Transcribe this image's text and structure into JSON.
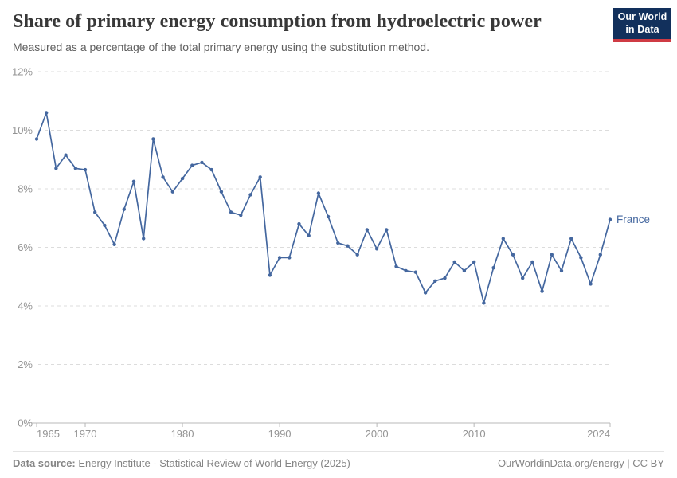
{
  "header": {
    "title": "Share of primary energy consumption from hydroelectric power",
    "subtitle": "Measured as a percentage of the total primary energy using the substitution method.",
    "logo": {
      "line1": "Our World",
      "line2": "in Data",
      "bg_color": "#12305c",
      "accent_color": "#cf3b44"
    }
  },
  "chart_data": {
    "type": "line",
    "title": "Share of primary energy consumption from hydroelectric power",
    "xlabel": "",
    "ylabel": "",
    "ylim": [
      0,
      12
    ],
    "grid": "horizontal dashed",
    "legend": "end-of-line label",
    "yticks": [
      0,
      2,
      4,
      6,
      8,
      10,
      12
    ],
    "ytick_labels": [
      "0%",
      "2%",
      "4%",
      "6%",
      "8%",
      "10%",
      "12%"
    ],
    "xticks": [
      1965,
      1970,
      1980,
      1990,
      2000,
      2010,
      2024
    ],
    "x": [
      1965,
      1966,
      1967,
      1968,
      1969,
      1970,
      1971,
      1972,
      1973,
      1974,
      1975,
      1976,
      1977,
      1978,
      1979,
      1980,
      1981,
      1982,
      1983,
      1984,
      1985,
      1986,
      1987,
      1988,
      1989,
      1990,
      1991,
      1992,
      1993,
      1994,
      1995,
      1996,
      1997,
      1998,
      1999,
      2000,
      2001,
      2002,
      2003,
      2004,
      2005,
      2006,
      2007,
      2008,
      2009,
      2010,
      2011,
      2012,
      2013,
      2014,
      2015,
      2016,
      2017,
      2018,
      2019,
      2020,
      2021,
      2022,
      2023,
      2024
    ],
    "series": [
      {
        "name": "France",
        "color": "#44679f",
        "values": [
          9.7,
          10.6,
          8.7,
          9.15,
          8.7,
          8.65,
          7.2,
          6.75,
          6.1,
          7.3,
          8.25,
          6.3,
          9.7,
          8.4,
          7.9,
          8.35,
          8.8,
          8.9,
          8.65,
          7.9,
          7.2,
          7.1,
          7.8,
          8.4,
          5.05,
          5.65,
          5.65,
          6.8,
          6.4,
          7.85,
          7.05,
          6.15,
          6.05,
          5.75,
          6.6,
          5.95,
          6.6,
          5.35,
          5.2,
          5.15,
          4.45,
          4.85,
          4.95,
          5.5,
          5.2,
          5.5,
          4.1,
          5.3,
          6.3,
          5.75,
          4.95,
          5.5,
          4.5,
          5.75,
          5.2,
          6.3,
          5.65,
          4.75,
          5.75,
          6.95
        ]
      }
    ],
    "colors": {
      "gridline": "#dcdcdc",
      "axis": "#b8b8b8",
      "tick_text": "#949494"
    }
  },
  "footer": {
    "datasource_label": "Data source:",
    "datasource_text": " Energy Institute - Statistical Review of World Energy (2025)",
    "attribution": "OurWorldinData.org/energy | CC BY"
  }
}
